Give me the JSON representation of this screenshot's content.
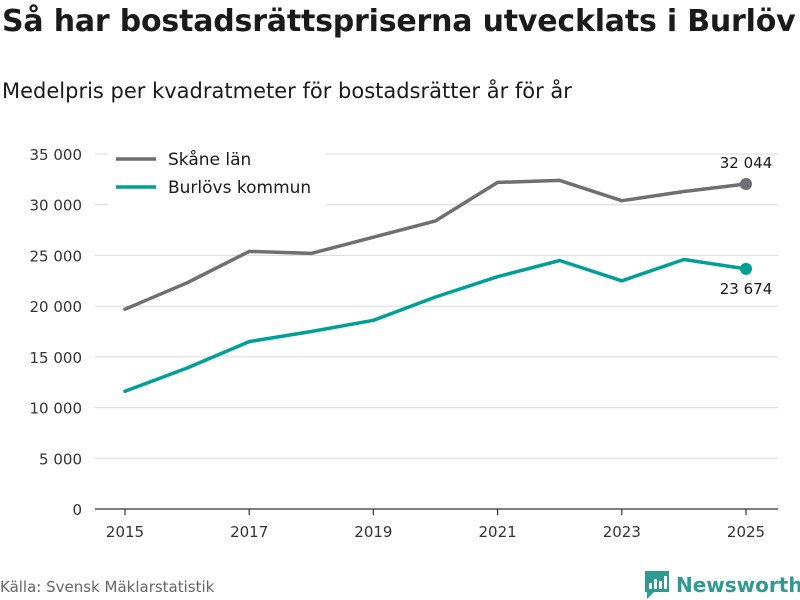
{
  "title": "Så har bostadsrättspriserna utvecklats i Burlöv",
  "subtitle": "Medelpris per kvadratmeter för bostadsrätter år för år",
  "source": "Källa: Svensk Mäklarstatistik",
  "brand": "Newsworthy",
  "colors": {
    "skane": "#6e6e73",
    "burlov": "#00a096",
    "grid": "#d9d9d9",
    "brand": "#2f9a92"
  },
  "chart_data": {
    "type": "line",
    "title": "Så har bostadsrättspriserna utvecklats i Burlöv",
    "subtitle": "Medelpris per kvadratmeter för bostadsrätter år för år",
    "xlabel": "",
    "ylabel": "",
    "x": [
      2015,
      2016,
      2017,
      2018,
      2019,
      2020,
      2021,
      2022,
      2023,
      2024,
      2025
    ],
    "xticks": [
      2015,
      2017,
      2019,
      2021,
      2023,
      2025
    ],
    "xtick_labels": [
      "2015",
      "2017",
      "2019",
      "2021",
      "2023",
      "2025"
    ],
    "ylim": [
      0,
      35000
    ],
    "yticks": [
      0,
      5000,
      10000,
      15000,
      20000,
      25000,
      30000,
      35000
    ],
    "ytick_labels": [
      "0",
      "5 000",
      "10 000",
      "15 000",
      "20 000",
      "25 000",
      "30 000",
      "35 000"
    ],
    "grid": true,
    "legend_position": "top-left",
    "series": [
      {
        "name": "Skåne län",
        "color": "#6e6e73",
        "values": [
          19700,
          22300,
          25400,
          25200,
          26800,
          28400,
          32200,
          32400,
          30400,
          31300,
          32044
        ],
        "end_label": "32 044"
      },
      {
        "name": "Burlövs kommun",
        "color": "#00a096",
        "values": [
          11600,
          13900,
          16500,
          17500,
          18600,
          20900,
          22900,
          24500,
          22500,
          24600,
          23674
        ],
        "end_label": "23 674"
      }
    ]
  }
}
